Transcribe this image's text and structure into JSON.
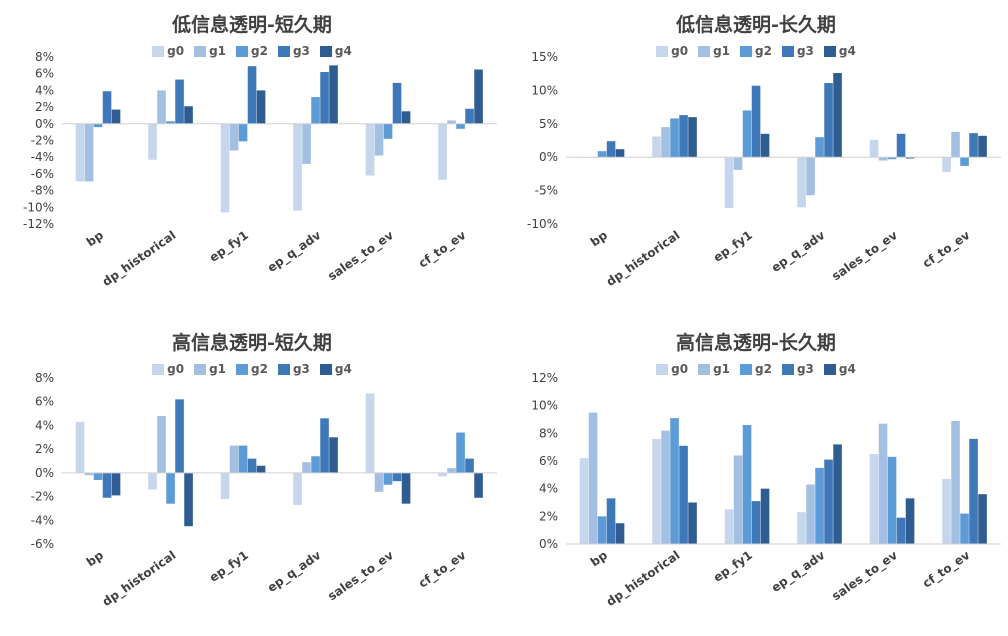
{
  "colors": [
    "#c5d6ed",
    "#a3c0e3",
    "#5c9bd5",
    "#3f78b8",
    "#2f5d92"
  ],
  "chart_data": [
    {
      "type": "bar",
      "title": "低信息透明-短久期",
      "categories": [
        "bp",
        "dp_historical",
        "ep_fy1",
        "ep_q_adv",
        "sales_to_ev",
        "cf_to_ev"
      ],
      "ylim": [
        -12,
        8
      ],
      "yticks": [
        -12,
        -10,
        -8,
        -6,
        -4,
        -2,
        0,
        2,
        4,
        6,
        8
      ],
      "ytick_labels": [
        "-12%",
        "-10%",
        "-8%",
        "-6%",
        "-4%",
        "-2%",
        "0%",
        "2%",
        "4%",
        "6%",
        "8%"
      ],
      "grid": false,
      "legend": "top",
      "series": [
        {
          "name": "g0",
          "values": [
            -6.9,
            -4.3,
            -10.6,
            -10.4,
            -6.2,
            -6.7
          ]
        },
        {
          "name": "g1",
          "values": [
            -6.9,
            4.0,
            -3.2,
            -4.8,
            -3.8,
            0.4
          ]
        },
        {
          "name": "g2",
          "values": [
            -0.4,
            0.3,
            -2.1,
            3.2,
            -1.8,
            -0.6
          ]
        },
        {
          "name": "g3",
          "values": [
            3.9,
            5.3,
            6.9,
            6.2,
            4.9,
            1.8
          ]
        },
        {
          "name": "g4",
          "values": [
            1.7,
            2.1,
            4.0,
            7.0,
            1.5,
            6.5
          ]
        }
      ]
    },
    {
      "type": "bar",
      "title": "低信息透明-长久期",
      "categories": [
        "bp",
        "dp_historical",
        "ep_fy1",
        "ep_q_adv",
        "sales_to_ev",
        "cf_to_ev"
      ],
      "ylim": [
        -10,
        15
      ],
      "yticks": [
        -10,
        -5,
        0,
        5,
        10,
        15
      ],
      "ytick_labels": [
        "-10%",
        "-5%",
        "0%",
        "5%",
        "10%",
        "15%"
      ],
      "grid": false,
      "legend": "top",
      "series": [
        {
          "name": "g0",
          "values": [
            0.0,
            3.1,
            -7.6,
            -7.5,
            2.6,
            -2.2
          ]
        },
        {
          "name": "g1",
          "values": [
            0.0,
            4.5,
            -1.9,
            -5.7,
            -0.5,
            3.8
          ]
        },
        {
          "name": "g2",
          "values": [
            0.9,
            5.8,
            7.0,
            3.0,
            -0.3,
            -1.3
          ]
        },
        {
          "name": "g3",
          "values": [
            2.4,
            6.3,
            10.7,
            11.1,
            3.5,
            3.6
          ]
        },
        {
          "name": "g4",
          "values": [
            1.2,
            6.0,
            3.5,
            12.6,
            -0.2,
            3.2
          ]
        }
      ]
    },
    {
      "type": "bar",
      "title": "高信息透明-短久期",
      "categories": [
        "bp",
        "dp_historical",
        "ep_fy1",
        "ep_q_adv",
        "sales_to_ev",
        "cf_to_ev"
      ],
      "ylim": [
        -6,
        8
      ],
      "yticks": [
        -6,
        -4,
        -2,
        0,
        2,
        4,
        6,
        8
      ],
      "ytick_labels": [
        "-6%",
        "-4%",
        "-2%",
        "0%",
        "2%",
        "4%",
        "6%",
        "8%"
      ],
      "grid": false,
      "legend": "top",
      "series": [
        {
          "name": "g0",
          "values": [
            4.3,
            -1.4,
            -2.2,
            -2.7,
            6.7,
            -0.3
          ]
        },
        {
          "name": "g1",
          "values": [
            -0.2,
            4.8,
            2.3,
            0.9,
            -1.6,
            0.4
          ]
        },
        {
          "name": "g2",
          "values": [
            -0.6,
            -2.6,
            2.3,
            1.4,
            -1.0,
            3.4
          ]
        },
        {
          "name": "g3",
          "values": [
            -2.1,
            6.2,
            1.2,
            4.6,
            -0.7,
            1.2
          ]
        },
        {
          "name": "g4",
          "values": [
            -1.9,
            -4.5,
            0.6,
            3.0,
            -2.6,
            -2.1
          ]
        }
      ]
    },
    {
      "type": "bar",
      "title": "高信息透明-长久期",
      "categories": [
        "bp",
        "dp_historical",
        "ep_fy1",
        "ep_q_adv",
        "sales_to_ev",
        "cf_to_ev"
      ],
      "ylim": [
        0,
        12
      ],
      "yticks": [
        0,
        2,
        4,
        6,
        8,
        10,
        12
      ],
      "ytick_labels": [
        "0%",
        "2%",
        "4%",
        "6%",
        "8%",
        "10%",
        "12%"
      ],
      "grid": false,
      "legend": "top",
      "series": [
        {
          "name": "g0",
          "values": [
            6.2,
            7.6,
            2.5,
            2.3,
            6.5,
            4.7
          ]
        },
        {
          "name": "g1",
          "values": [
            9.5,
            8.2,
            6.4,
            4.3,
            8.7,
            8.9
          ]
        },
        {
          "name": "g2",
          "values": [
            2.0,
            9.1,
            8.6,
            5.5,
            6.3,
            2.2
          ]
        },
        {
          "name": "g3",
          "values": [
            3.3,
            7.1,
            3.1,
            6.1,
            1.9,
            7.6
          ]
        },
        {
          "name": "g4",
          "values": [
            1.5,
            3.0,
            4.0,
            7.2,
            3.3,
            3.6
          ]
        }
      ]
    }
  ]
}
